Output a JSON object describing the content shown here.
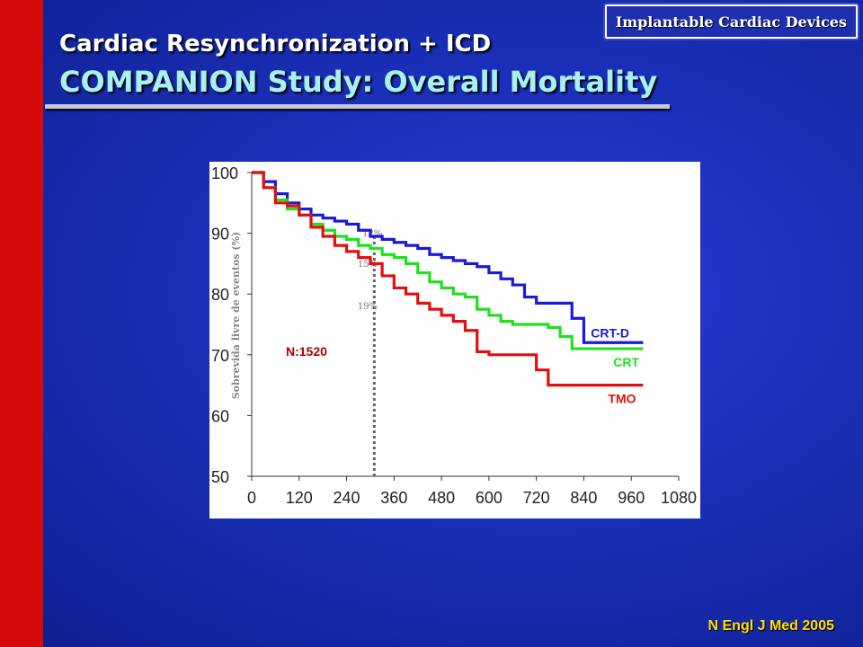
{
  "header": {
    "badge": "Implantable Cardiac Devices",
    "title_line1": "Cardiac Resynchronization + ICD",
    "title_line2": "COMPANION Study: Overall Mortality"
  },
  "footer": {
    "source": "N Engl J Med 2005"
  },
  "colors": {
    "crt_d": "#1a1ad8",
    "crt": "#20e020",
    "tmo": "#e01010",
    "n_label": "#b00000"
  },
  "chart_data": {
    "type": "line",
    "title": "",
    "ylabel": "Sobrevida livre de eventos (%)",
    "xlabel": "",
    "xlim": [
      0,
      1080
    ],
    "ylim": [
      50,
      100
    ],
    "xticks": [
      0,
      120,
      240,
      360,
      480,
      600,
      720,
      840,
      960,
      1080
    ],
    "yticks": [
      50,
      60,
      70,
      80,
      90,
      100
    ],
    "x_tick_labels": [
      "0",
      "120",
      "240",
      "360",
      "480",
      "600",
      "720",
      "840",
      "960",
      "1080"
    ],
    "y_tick_labels": [
      "50",
      "60",
      "70",
      "80",
      "90",
      "100"
    ],
    "annotation": "N:1520",
    "reference_line_x": 310,
    "reference_labels": [
      {
        "text": "12%",
        "x": 280,
        "y": 89.5
      },
      {
        "text": "15%",
        "x": 268,
        "y": 84.5
      },
      {
        "text": "19%",
        "x": 268,
        "y": 77.5
      }
    ],
    "series": [
      {
        "name": "CRT-D",
        "color": "#1a1ad8",
        "x": [
          0,
          30,
          60,
          90,
          120,
          150,
          180,
          210,
          240,
          270,
          300,
          330,
          360,
          390,
          420,
          450,
          480,
          510,
          540,
          570,
          600,
          630,
          660,
          690,
          720,
          750,
          780,
          800,
          810,
          840,
          870,
          900,
          930,
          960,
          990
        ],
        "y": [
          100,
          98.5,
          96.5,
          95,
          94,
          93,
          92.5,
          92,
          91.5,
          90.5,
          89.5,
          89,
          88.5,
          88,
          87.5,
          86.5,
          86,
          85.5,
          85,
          84.5,
          83.5,
          82.5,
          81.5,
          79.5,
          78.5,
          78.5,
          78.5,
          78.5,
          76,
          72,
          72,
          72,
          72,
          72,
          72
        ]
      },
      {
        "name": "CRT",
        "color": "#20e020",
        "x": [
          0,
          30,
          60,
          90,
          120,
          150,
          180,
          210,
          240,
          270,
          300,
          330,
          360,
          390,
          420,
          450,
          480,
          510,
          540,
          570,
          600,
          630,
          660,
          690,
          720,
          750,
          780,
          810,
          840,
          870,
          900,
          930,
          960,
          990
        ],
        "y": [
          100,
          97.5,
          95.5,
          94,
          93,
          91.5,
          90.5,
          89.5,
          89,
          88,
          87.5,
          86.5,
          86,
          85,
          83.5,
          82,
          81,
          80,
          79.5,
          77.5,
          76.5,
          75.5,
          75,
          75,
          75,
          74.5,
          73,
          71,
          71,
          71,
          71,
          71,
          71,
          71
        ]
      },
      {
        "name": "TMO",
        "color": "#e01010",
        "x": [
          0,
          30,
          60,
          90,
          120,
          150,
          180,
          210,
          240,
          270,
          300,
          330,
          360,
          390,
          420,
          450,
          480,
          510,
          540,
          570,
          600,
          630,
          660,
          690,
          720,
          750,
          780,
          810,
          840,
          870,
          900,
          930,
          960,
          990
        ],
        "y": [
          100,
          97.5,
          95,
          94.5,
          93,
          91,
          89.5,
          88,
          87,
          86,
          85,
          83,
          81,
          80,
          78.5,
          77.5,
          76.5,
          75.5,
          74,
          70.5,
          70,
          70,
          70,
          70,
          67.5,
          65,
          65,
          65,
          65,
          65,
          65,
          65,
          65,
          65
        ]
      }
    ]
  }
}
